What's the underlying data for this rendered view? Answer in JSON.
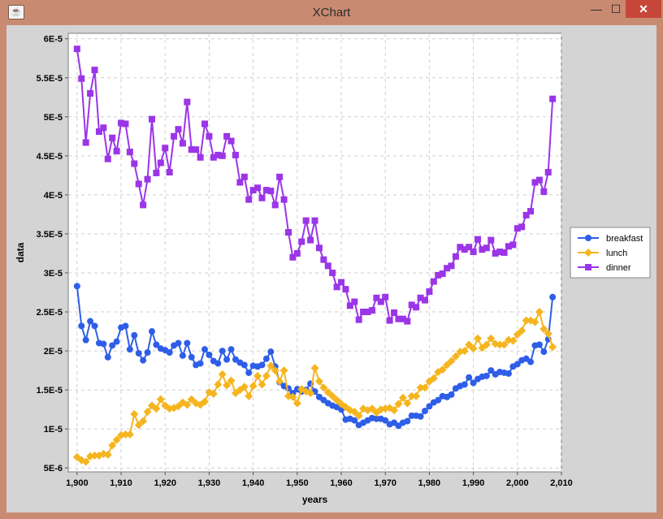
{
  "window": {
    "title": "XChart",
    "icon": "java-cup-icon",
    "controls": {
      "minimize": "—",
      "maximize": "☐",
      "close": "✕"
    }
  },
  "chart_data": {
    "type": "line",
    "title": "",
    "xlabel": "years",
    "ylabel": "data",
    "xlim": [
      1898,
      2010
    ],
    "ylim": [
      4.5e-06,
      6.07e-05
    ],
    "x_ticks": [
      1900,
      1910,
      1920,
      1930,
      1940,
      1950,
      1960,
      1970,
      1980,
      1990,
      2000,
      2010
    ],
    "x_tick_labels": [
      "1,900",
      "1,910",
      "1,920",
      "1,930",
      "1,940",
      "1,950",
      "1,960",
      "1,970",
      "1,980",
      "1,990",
      "2,000",
      "2,010"
    ],
    "y_ticks": [
      5e-06,
      1e-05,
      1.5e-05,
      2e-05,
      2.5e-05,
      3e-05,
      3.5e-05,
      4e-05,
      4.5e-05,
      5e-05,
      5.5e-05,
      6e-05
    ],
    "y_tick_labels": [
      "5E-6",
      "1E-5",
      "1.5E-5",
      "2E-5",
      "2.5E-5",
      "3E-5",
      "3.5E-5",
      "4E-5",
      "4.5E-5",
      "5E-5",
      "5.5E-5",
      "6E-5"
    ],
    "grid": true,
    "legend_position": "outside-right",
    "x": [
      1900,
      1901,
      1902,
      1903,
      1904,
      1905,
      1906,
      1907,
      1908,
      1909,
      1910,
      1911,
      1912,
      1913,
      1914,
      1915,
      1916,
      1917,
      1918,
      1919,
      1920,
      1921,
      1922,
      1923,
      1924,
      1925,
      1926,
      1927,
      1928,
      1929,
      1930,
      1931,
      1932,
      1933,
      1934,
      1935,
      1936,
      1937,
      1938,
      1939,
      1940,
      1941,
      1942,
      1943,
      1944,
      1945,
      1946,
      1947,
      1948,
      1949,
      1950,
      1951,
      1952,
      1953,
      1954,
      1955,
      1956,
      1957,
      1958,
      1959,
      1960,
      1961,
      1962,
      1963,
      1964,
      1965,
      1966,
      1967,
      1968,
      1969,
      1970,
      1971,
      1972,
      1973,
      1974,
      1975,
      1976,
      1977,
      1978,
      1979,
      1980,
      1981,
      1982,
      1983,
      1984,
      1985,
      1986,
      1987,
      1988,
      1989,
      1990,
      1991,
      1992,
      1993,
      1994,
      1995,
      1996,
      1997,
      1998,
      1999,
      2000,
      2001,
      2002,
      2003,
      2004,
      2005,
      2006,
      2007,
      2008
    ],
    "series": [
      {
        "name": "breakfast",
        "color": "#2e5ee8",
        "marker": "circle",
        "values": [
          2.83,
          2.32,
          2.14,
          2.38,
          2.32,
          2.1,
          2.09,
          1.92,
          2.07,
          2.12,
          2.3,
          2.32,
          2.02,
          2.2,
          1.97,
          1.88,
          1.98,
          2.25,
          2.08,
          2.03,
          2.01,
          1.98,
          2.07,
          2.1,
          1.94,
          2.1,
          1.92,
          1.82,
          1.84,
          2.02,
          1.95,
          1.87,
          1.84,
          2.0,
          1.89,
          2.02,
          1.89,
          1.85,
          1.82,
          1.72,
          1.81,
          1.8,
          1.82,
          1.9,
          1.99,
          1.8,
          1.6,
          1.55,
          1.52,
          1.46,
          1.51,
          1.48,
          1.5,
          1.58,
          1.48,
          1.41,
          1.37,
          1.33,
          1.3,
          1.28,
          1.25,
          1.12,
          1.13,
          1.11,
          1.05,
          1.08,
          1.11,
          1.14,
          1.13,
          1.13,
          1.11,
          1.06,
          1.08,
          1.04,
          1.08,
          1.1,
          1.17,
          1.17,
          1.16,
          1.23,
          1.29,
          1.34,
          1.37,
          1.42,
          1.41,
          1.44,
          1.52,
          1.55,
          1.57,
          1.66,
          1.59,
          1.64,
          1.67,
          1.68,
          1.75,
          1.7,
          1.73,
          1.72,
          1.71,
          1.8,
          1.83,
          1.88,
          1.9,
          1.86,
          2.07,
          2.08,
          1.99,
          2.15,
          2.69
        ]
      },
      {
        "name": "lunch",
        "color": "#f5b51e",
        "marker": "diamond",
        "values": [
          0.64,
          0.6,
          0.58,
          0.65,
          0.66,
          0.66,
          0.68,
          0.67,
          0.79,
          0.86,
          0.92,
          0.93,
          0.93,
          1.19,
          1.05,
          1.1,
          1.22,
          1.3,
          1.26,
          1.38,
          1.3,
          1.26,
          1.27,
          1.29,
          1.34,
          1.31,
          1.38,
          1.33,
          1.31,
          1.35,
          1.47,
          1.45,
          1.57,
          1.7,
          1.56,
          1.62,
          1.46,
          1.5,
          1.54,
          1.42,
          1.55,
          1.68,
          1.57,
          1.68,
          1.81,
          1.75,
          1.61,
          1.75,
          1.42,
          1.41,
          1.33,
          1.51,
          1.48,
          1.46,
          1.78,
          1.61,
          1.53,
          1.47,
          1.42,
          1.37,
          1.32,
          1.28,
          1.24,
          1.22,
          1.17,
          1.26,
          1.24,
          1.26,
          1.21,
          1.25,
          1.26,
          1.27,
          1.24,
          1.32,
          1.4,
          1.33,
          1.42,
          1.42,
          1.53,
          1.53,
          1.61,
          1.65,
          1.73,
          1.76,
          1.82,
          1.87,
          1.93,
          1.99,
          2.0,
          2.08,
          2.03,
          2.16,
          2.04,
          2.08,
          2.16,
          2.09,
          2.08,
          2.08,
          2.14,
          2.13,
          2.21,
          2.26,
          2.39,
          2.39,
          2.37,
          2.5,
          2.28,
          2.22,
          2.05
        ]
      },
      {
        "name": "dinner",
        "color": "#9b35e8",
        "marker": "square",
        "values": [
          5.87,
          5.49,
          4.67,
          5.3,
          5.6,
          4.81,
          4.86,
          4.46,
          4.73,
          4.56,
          4.92,
          4.91,
          4.55,
          4.4,
          4.14,
          3.87,
          4.2,
          4.97,
          4.28,
          4.41,
          4.6,
          4.29,
          4.75,
          4.84,
          4.66,
          5.19,
          4.58,
          4.58,
          4.48,
          4.91,
          4.75,
          4.48,
          4.51,
          4.5,
          4.75,
          4.69,
          4.51,
          4.16,
          4.23,
          3.94,
          4.06,
          4.09,
          3.96,
          4.06,
          4.05,
          3.87,
          4.23,
          3.94,
          3.52,
          3.2,
          3.25,
          3.4,
          3.67,
          3.42,
          3.67,
          3.32,
          3.17,
          3.09,
          3.0,
          2.82,
          2.88,
          2.79,
          2.58,
          2.63,
          2.4,
          2.5,
          2.5,
          2.52,
          2.68,
          2.63,
          2.69,
          2.39,
          2.49,
          2.41,
          2.41,
          2.38,
          2.59,
          2.56,
          2.68,
          2.65,
          2.76,
          2.89,
          2.97,
          2.99,
          3.06,
          3.09,
          3.21,
          3.33,
          3.3,
          3.33,
          3.27,
          3.43,
          3.3,
          3.32,
          3.42,
          3.25,
          3.27,
          3.26,
          3.34,
          3.36,
          3.57,
          3.59,
          3.74,
          3.79,
          4.16,
          4.19,
          4.04,
          4.29,
          5.23
        ]
      }
    ],
    "value_scale": 1e-05
  }
}
